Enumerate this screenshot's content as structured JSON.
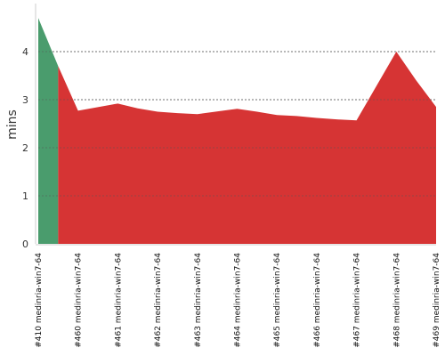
{
  "chart_data": {
    "type": "area",
    "ylabel": "mins",
    "ylim": [
      0,
      5
    ],
    "yticks": [
      0,
      1,
      2,
      3,
      4
    ],
    "grid": "horizontal dashed",
    "categories": [
      "#410 medinria-win7-64",
      "#460 medinria-win7-64",
      "#461 medinria-win7-64",
      "#462 medinria-win7-64",
      "#463 medinria-win7-64",
      "#464 medinria-win7-64",
      "#465 medinria-win7-64",
      "#466 medinria-win7-64",
      "#467 medinria-win7-64",
      "#468 medinria-win7-64",
      "#469 medinria-win7-64"
    ],
    "points": [
      {
        "x": 0.0,
        "y": 4.7,
        "status": "success"
      },
      {
        "x": 0.5,
        "y": 3.7,
        "status": "success"
      },
      {
        "x": 0.5,
        "y": 3.7,
        "status": "failure"
      },
      {
        "x": 1.0,
        "y": 2.77,
        "status": "failure"
      },
      {
        "x": 2.0,
        "y": 2.92,
        "status": "failure"
      },
      {
        "x": 2.5,
        "y": 2.82,
        "status": "failure"
      },
      {
        "x": 3.0,
        "y": 2.75,
        "status": "failure"
      },
      {
        "x": 3.5,
        "y": 2.72,
        "status": "failure"
      },
      {
        "x": 4.0,
        "y": 2.7,
        "status": "failure"
      },
      {
        "x": 5.0,
        "y": 2.81,
        "status": "failure"
      },
      {
        "x": 5.5,
        "y": 2.75,
        "status": "failure"
      },
      {
        "x": 6.0,
        "y": 2.68,
        "status": "failure"
      },
      {
        "x": 6.5,
        "y": 2.66,
        "status": "failure"
      },
      {
        "x": 7.0,
        "y": 2.62,
        "status": "failure"
      },
      {
        "x": 7.5,
        "y": 2.59,
        "status": "failure"
      },
      {
        "x": 8.0,
        "y": 2.57,
        "status": "failure"
      },
      {
        "x": 9.0,
        "y": 4.0,
        "status": "failure"
      },
      {
        "x": 9.5,
        "y": 3.4,
        "status": "failure"
      },
      {
        "x": 10.0,
        "y": 2.85,
        "status": "failure"
      }
    ],
    "colors": {
      "success": "#4a9c6d",
      "failure": "#d63434",
      "grid": "#888888",
      "axis": "#cccccc"
    }
  }
}
